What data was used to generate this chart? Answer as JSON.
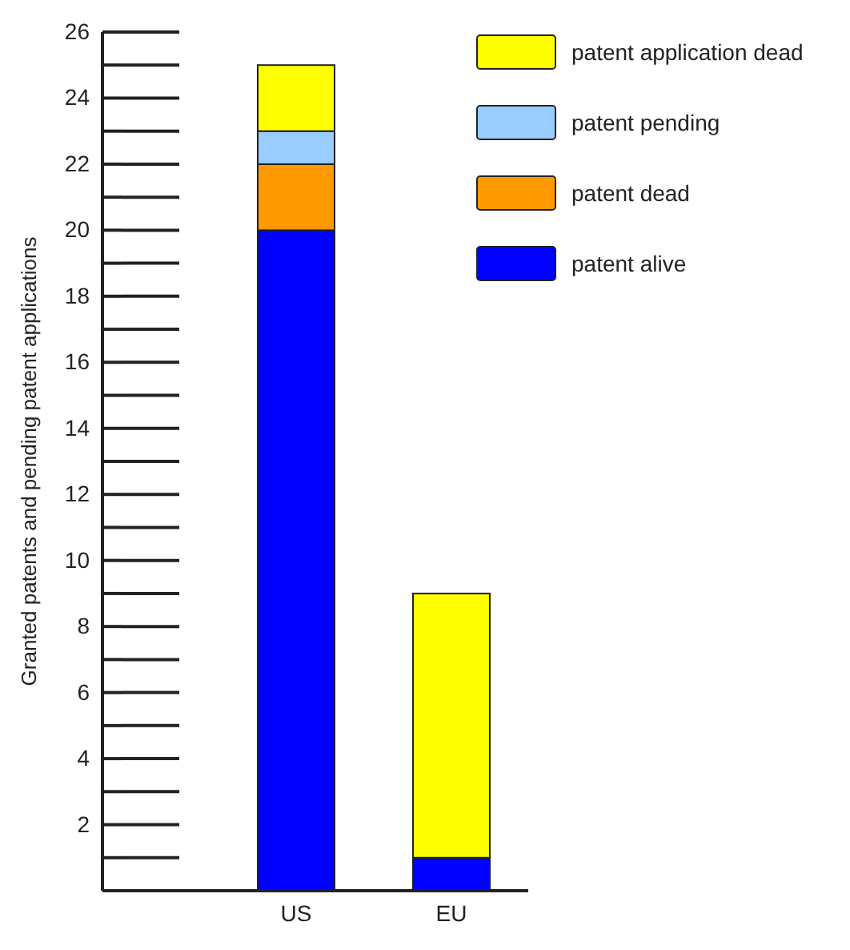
{
  "chart_data": {
    "type": "bar",
    "ylabel": "Granted patents and pending patent applications",
    "categories": [
      "US",
      "EU"
    ],
    "stacked": true,
    "legend": "top right",
    "series": [
      {
        "name": "patent alive",
        "color": "#0000ff",
        "values": [
          20,
          1
        ]
      },
      {
        "name": "patent dead",
        "color": "#ff9900",
        "values": [
          2,
          0
        ]
      },
      {
        "name": "patent pending",
        "color": "#99ccff",
        "values": [
          1,
          0
        ]
      },
      {
        "name": "patent application dead",
        "color": "#ffff00",
        "values": [
          2,
          8
        ]
      }
    ],
    "ylim": [
      0,
      26
    ],
    "yticks": [
      {
        "value": 1,
        "label": null
      },
      2,
      {
        "value": 3,
        "label": null
      },
      4,
      {
        "value": 5,
        "label": null
      },
      6,
      {
        "value": 7,
        "label": null
      },
      8,
      {
        "value": 9,
        "label": null
      },
      10,
      {
        "value": 11,
        "label": null
      },
      12,
      {
        "value": 13,
        "label": null
      },
      14,
      {
        "value": 15,
        "label": null
      },
      16,
      {
        "value": 17,
        "label": null
      },
      18,
      {
        "value": 19,
        "label": null
      },
      20,
      {
        "value": 21,
        "label": null
      },
      22,
      {
        "value": 23,
        "label": null
      },
      24,
      {
        "value": 25,
        "label": null
      },
      26
    ]
  }
}
